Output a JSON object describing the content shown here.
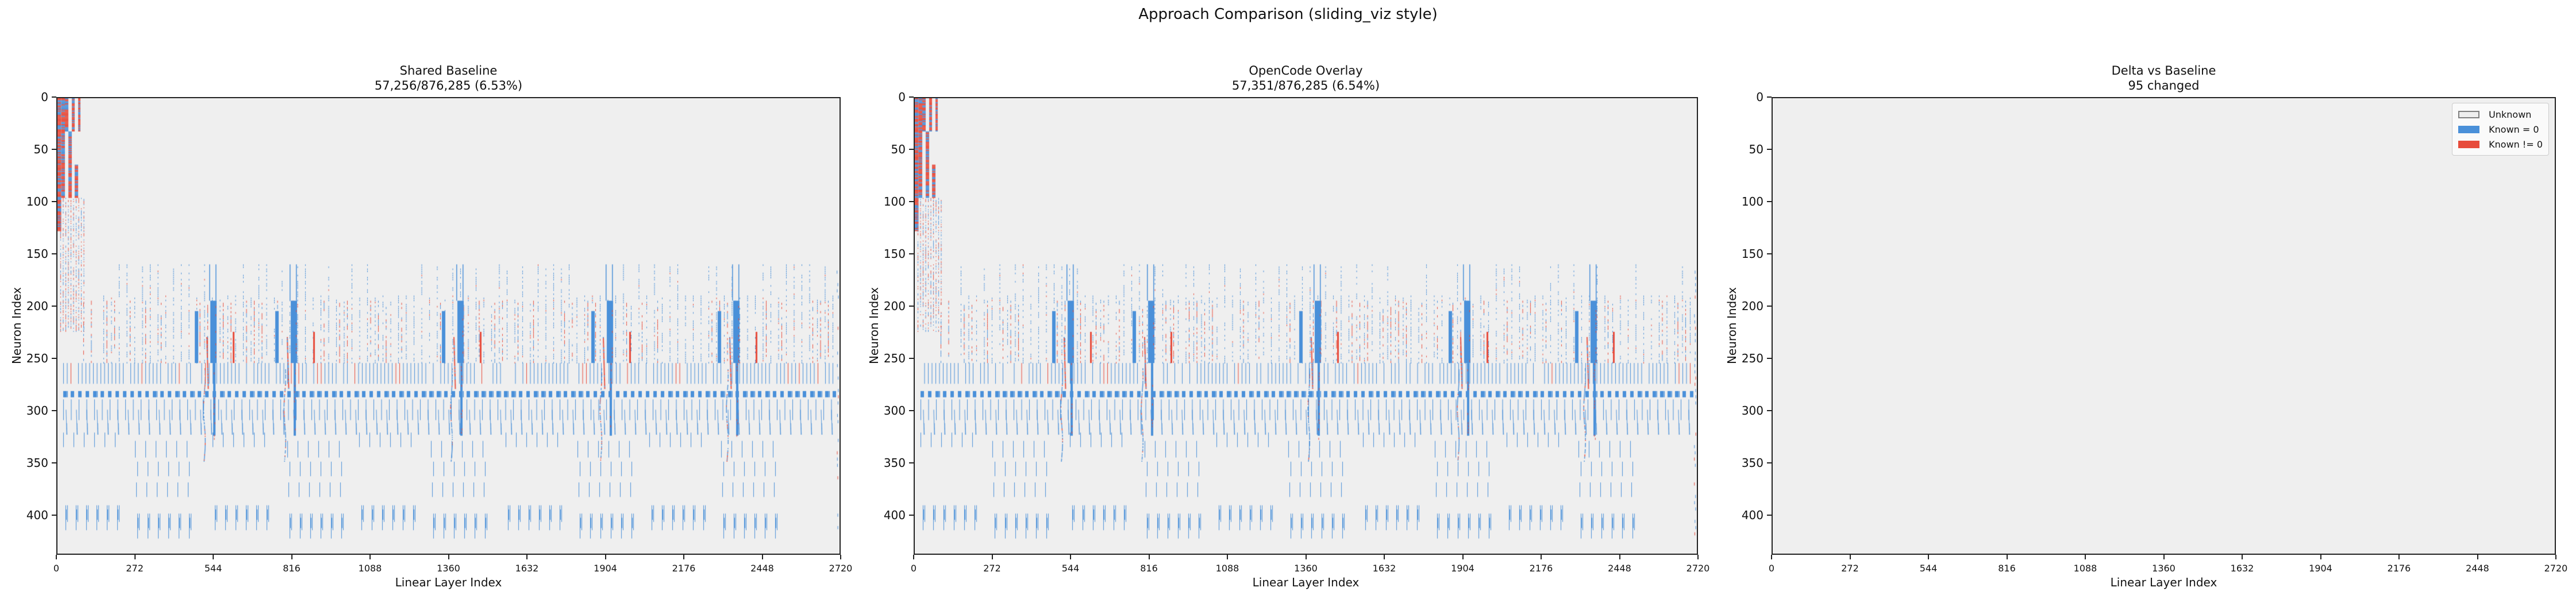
{
  "figure": {
    "suptitle": "Approach Comparison (sliding_viz style)"
  },
  "colors": {
    "unknown": "#efefef",
    "known_zero": "#4a90d9",
    "known_nonzero": "#e74c3c",
    "legend_unknown_edge": "#808080"
  },
  "chart_data": [
    {
      "type": "heatmap",
      "title": "Shared Baseline",
      "subtitle": "57,256/876,285 (6.53%)",
      "known": 57256,
      "total": 876285,
      "known_pct": 6.53,
      "xlabel": "Linear Layer Index",
      "ylabel": "Neuron Index",
      "xlim": [
        0,
        2720
      ],
      "ylim": [
        438,
        0
      ],
      "xticks": [
        "0",
        "272",
        "544",
        "816",
        "1088",
        "1360",
        "1632",
        "1904",
        "2176",
        "2448",
        "2720"
      ],
      "yticks": [
        "0",
        "50",
        "100",
        "150",
        "200",
        "250",
        "300",
        "350",
        "400"
      ],
      "categories": [
        "Unknown",
        "Known = 0",
        "Known != 0"
      ],
      "pattern": "baseline"
    },
    {
      "type": "heatmap",
      "title": "OpenCode Overlay",
      "subtitle": "57,351/876,285 (6.54%)",
      "known": 57351,
      "total": 876285,
      "known_pct": 6.54,
      "xlabel": "Linear Layer Index",
      "ylabel": "Neuron Index",
      "xlim": [
        0,
        2720
      ],
      "ylim": [
        438,
        0
      ],
      "xticks": [
        "0",
        "272",
        "544",
        "816",
        "1088",
        "1360",
        "1632",
        "1904",
        "2176",
        "2448",
        "2720"
      ],
      "yticks": [
        "0",
        "50",
        "100",
        "150",
        "200",
        "250",
        "300",
        "350",
        "400"
      ],
      "categories": [
        "Unknown",
        "Known = 0",
        "Known != 0"
      ],
      "pattern": "overlay"
    },
    {
      "type": "heatmap",
      "title": "Delta vs Baseline",
      "subtitle": "95 changed",
      "changed": 95,
      "xlabel": "Linear Layer Index",
      "ylabel": "Neuron Index",
      "xlim": [
        0,
        2720
      ],
      "ylim": [
        438,
        0
      ],
      "xticks": [
        "0",
        "272",
        "544",
        "816",
        "1088",
        "1360",
        "1632",
        "1904",
        "2176",
        "2448",
        "2720"
      ],
      "yticks": [
        "0",
        "50",
        "100",
        "150",
        "200",
        "250",
        "300",
        "350",
        "400"
      ],
      "legend": {
        "position": "top-right",
        "entries": [
          "Unknown",
          "Known = 0",
          "Known != 0"
        ]
      },
      "pattern": "empty"
    }
  ]
}
